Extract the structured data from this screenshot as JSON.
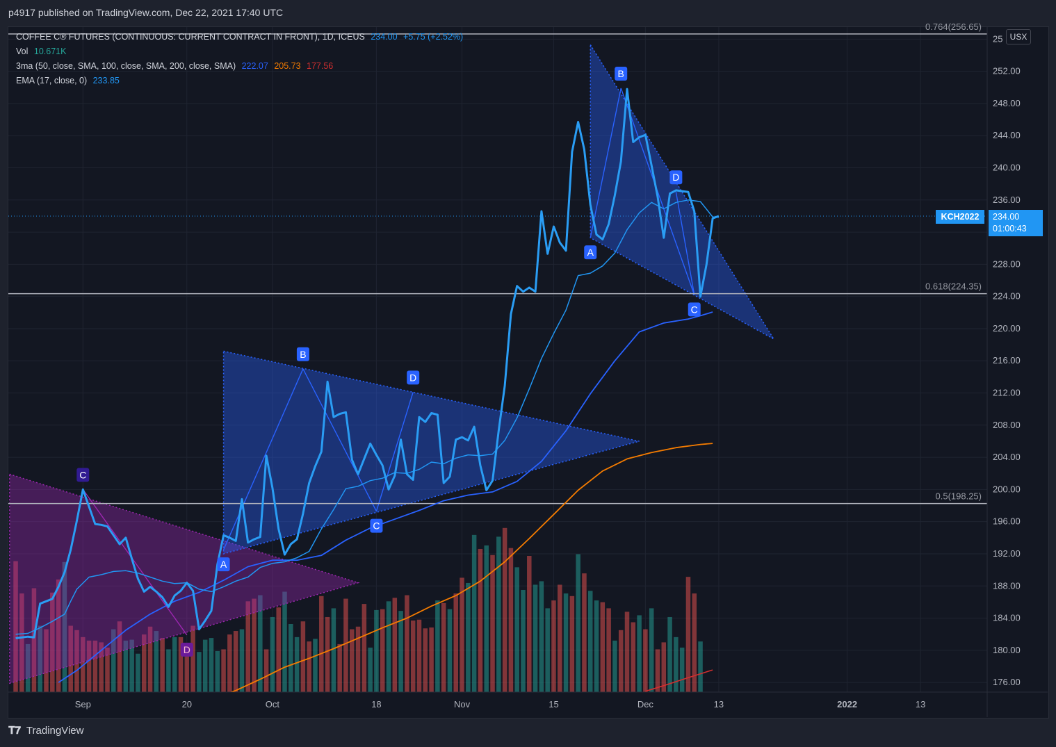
{
  "header": {
    "published": "p4917 published on TradingView.com, Dec 22, 2021 17:40 UTC"
  },
  "legend": {
    "symbol": "COFFEE C® FUTURES (CONTINUOUS: CURRENT CONTRACT IN FRONT), 1D, ICEUS",
    "last": "234.00",
    "change": "+5.75 (+2.52%)",
    "vol_label": "Vol",
    "vol_value": "10.671K",
    "ma_label": "3ma (50, close, SMA, 100, close, SMA, 200, close, SMA)",
    "ma50": "222.07",
    "ma100": "205.73",
    "ma200": "177.56",
    "ema_label": "EMA (17, close, 0)",
    "ema_value": "233.85"
  },
  "currency": "USX",
  "price_tag": {
    "symbol": "KCH2022",
    "price": "234.00",
    "countdown": "01:00:43"
  },
  "footer": {
    "brand": "TradingView"
  },
  "colors": {
    "price": "#2a9df4",
    "ema": "#2196f3",
    "ma50": "#2962ff",
    "ma100": "#f57c00",
    "ma200": "#d32f2f",
    "vol_up": "#26a69a",
    "vol_down": "#ef5350",
    "pattern_blue": "#2962ff",
    "pattern_purple": "#9c27b0"
  },
  "chart_data": {
    "type": "line",
    "y_ticks": [
      "25",
      "252.00",
      "248.00",
      "244.00",
      "240.00",
      "236.00",
      "232.00",
      "228.00",
      "224.00",
      "220.00",
      "216.00",
      "212.00",
      "208.00",
      "204.00",
      "200.00",
      "196.00",
      "192.00",
      "188.00",
      "184.00",
      "180.00",
      "176.00"
    ],
    "x_ticks": [
      {
        "d": 11,
        "label": "Sep"
      },
      {
        "d": 28,
        "label": "20"
      },
      {
        "d": 42,
        "label": "Oct"
      },
      {
        "d": 59,
        "label": "18"
      },
      {
        "d": 73,
        "label": "Nov"
      },
      {
        "d": 88,
        "label": "15"
      },
      {
        "d": 103,
        "label": "Dec"
      },
      {
        "d": 115,
        "label": "13"
      },
      {
        "d": 136,
        "label": "2022"
      },
      {
        "d": 148,
        "label": "13"
      }
    ],
    "ylim": [
      174.8,
      257.5
    ],
    "xlim": [
      -1.2,
      158.9
    ],
    "fib_levels": [
      {
        "label": "0.764(256.65)",
        "value": 256.65
      },
      {
        "label": "0.618(224.35)",
        "value": 224.35
      },
      {
        "label": "0.5(198.25)",
        "value": 198.25
      }
    ],
    "price": [
      [
        0,
        181.5
      ],
      [
        2,
        181.7
      ],
      [
        3,
        181.6
      ],
      [
        4,
        185.8
      ],
      [
        6,
        186.4
      ],
      [
        7,
        187.9
      ],
      [
        8,
        189.7
      ],
      [
        9,
        192.5
      ],
      [
        10,
        196.1
      ],
      [
        11,
        200.0
      ],
      [
        13,
        195.7
      ],
      [
        14,
        195.6
      ],
      [
        15,
        195.4
      ],
      [
        16,
        194.3
      ],
      [
        17,
        193.2
      ],
      [
        18,
        194.0
      ],
      [
        19,
        191.4
      ],
      [
        20,
        188.9
      ],
      [
        21,
        187.3
      ],
      [
        22,
        187.9
      ],
      [
        23,
        187.3
      ],
      [
        24,
        186.6
      ],
      [
        25,
        185.4
      ],
      [
        26,
        186.8
      ],
      [
        27,
        187.4
      ],
      [
        28,
        188.4
      ],
      [
        29,
        187.4
      ],
      [
        30,
        182.6
      ],
      [
        31,
        183.7
      ],
      [
        32,
        184.9
      ],
      [
        33,
        190.7
      ],
      [
        34,
        194.3
      ],
      [
        35,
        194.0
      ],
      [
        36,
        193.6
      ],
      [
        37,
        198.8
      ],
      [
        38,
        193.4
      ],
      [
        39,
        193.8
      ],
      [
        40,
        194.1
      ],
      [
        41,
        204.2
      ],
      [
        42,
        200.2
      ],
      [
        43,
        195.1
      ],
      [
        44,
        191.9
      ],
      [
        45,
        193.2
      ],
      [
        46,
        193.8
      ],
      [
        47,
        197.0
      ],
      [
        48,
        200.8
      ],
      [
        49,
        202.9
      ],
      [
        50,
        204.7
      ],
      [
        51,
        213.4
      ],
      [
        52,
        209.0
      ],
      [
        53,
        209.4
      ],
      [
        54,
        209.6
      ],
      [
        55,
        203.7
      ],
      [
        56,
        201.9
      ],
      [
        57,
        203.8
      ],
      [
        58,
        205.7
      ],
      [
        59,
        204.3
      ],
      [
        60,
        203.0
      ],
      [
        61,
        200.0
      ],
      [
        62,
        201.7
      ],
      [
        63,
        206.2
      ],
      [
        64,
        201.9
      ],
      [
        65,
        201.2
      ],
      [
        66,
        209.0
      ],
      [
        67,
        208.4
      ],
      [
        68,
        209.5
      ],
      [
        69,
        209.3
      ],
      [
        70,
        200.8
      ],
      [
        71,
        201.6
      ],
      [
        72,
        206.2
      ],
      [
        73,
        206.5
      ],
      [
        74,
        206.1
      ],
      [
        75,
        207.8
      ],
      [
        76,
        203.0
      ],
      [
        77,
        199.9
      ],
      [
        78,
        201.1
      ],
      [
        79,
        207.3
      ],
      [
        80,
        212.9
      ],
      [
        81,
        221.8
      ],
      [
        82,
        225.3
      ],
      [
        83,
        224.6
      ],
      [
        84,
        225.1
      ],
      [
        85,
        224.6
      ],
      [
        86,
        234.6
      ],
      [
        87,
        229.3
      ],
      [
        88,
        232.7
      ],
      [
        89,
        230.7
      ],
      [
        90,
        229.7
      ],
      [
        91,
        242.0
      ],
      [
        92,
        245.7
      ],
      [
        93,
        242.3
      ],
      [
        94,
        235.4
      ],
      [
        95,
        231.7
      ],
      [
        96,
        231.1
      ],
      [
        97,
        233.0
      ],
      [
        98,
        236.6
      ],
      [
        99,
        240.8
      ],
      [
        100,
        249.8
      ],
      [
        101,
        243.2
      ],
      [
        102,
        243.8
      ],
      [
        103,
        244.1
      ],
      [
        104,
        240.3
      ],
      [
        105,
        236.4
      ],
      [
        106,
        231.3
      ],
      [
        107,
        236.8
      ],
      [
        108,
        237.2
      ],
      [
        109,
        237.1
      ],
      [
        110,
        237.0
      ],
      [
        111,
        234.6
      ],
      [
        112,
        224.0
      ],
      [
        113,
        228.0
      ],
      [
        114,
        233.7
      ],
      [
        115,
        234.0
      ]
    ],
    "ema": [
      [
        0,
        182.0
      ],
      [
        2,
        182.1
      ],
      [
        4,
        182.8
      ],
      [
        6,
        183.6
      ],
      [
        8,
        184.5
      ],
      [
        9,
        186.1
      ],
      [
        10,
        187.6
      ],
      [
        12,
        189.1
      ],
      [
        14,
        189.4
      ],
      [
        16,
        189.8
      ],
      [
        18,
        189.9
      ],
      [
        20,
        189.6
      ],
      [
        22,
        189.1
      ],
      [
        24,
        188.6
      ],
      [
        26,
        188.3
      ],
      [
        28,
        188.4
      ],
      [
        30,
        187.6
      ],
      [
        32,
        187.3
      ],
      [
        34,
        187.9
      ],
      [
        36,
        188.6
      ],
      [
        38,
        189.1
      ],
      [
        40,
        190.3
      ],
      [
        42,
        190.8
      ],
      [
        44,
        191.0
      ],
      [
        46,
        191.5
      ],
      [
        48,
        192.3
      ],
      [
        50,
        195.1
      ],
      [
        52,
        197.5
      ],
      [
        54,
        200.1
      ],
      [
        56,
        200.4
      ],
      [
        58,
        201.1
      ],
      [
        60,
        201.4
      ],
      [
        62,
        202.1
      ],
      [
        64,
        202.0
      ],
      [
        66,
        202.5
      ],
      [
        68,
        203.4
      ],
      [
        70,
        203.2
      ],
      [
        72,
        203.9
      ],
      [
        74,
        204.3
      ],
      [
        76,
        204.2
      ],
      [
        78,
        204.4
      ],
      [
        80,
        206.1
      ],
      [
        82,
        208.9
      ],
      [
        84,
        212.5
      ],
      [
        86,
        216.3
      ],
      [
        88,
        219.4
      ],
      [
        90,
        222.3
      ],
      [
        92,
        226.6
      ],
      [
        94,
        226.9
      ],
      [
        96,
        227.8
      ],
      [
        98,
        229.4
      ],
      [
        100,
        232.3
      ],
      [
        102,
        234.4
      ],
      [
        104,
        235.7
      ],
      [
        106,
        234.9
      ],
      [
        108,
        235.7
      ],
      [
        110,
        236.0
      ],
      [
        112,
        235.8
      ],
      [
        114,
        233.9
      ],
      [
        115,
        233.85
      ]
    ],
    "ma50": [
      [
        7,
        176.0
      ],
      [
        10,
        177.5
      ],
      [
        14,
        180.0
      ],
      [
        18,
        182.5
      ],
      [
        22,
        184.5
      ],
      [
        26,
        186.1
      ],
      [
        30,
        187.2
      ],
      [
        34,
        188.7
      ],
      [
        38,
        190.4
      ],
      [
        42,
        191.2
      ],
      [
        46,
        191.2
      ],
      [
        50,
        191.8
      ],
      [
        54,
        193.7
      ],
      [
        58,
        195.2
      ],
      [
        62,
        196.3
      ],
      [
        66,
        197.4
      ],
      [
        70,
        198.6
      ],
      [
        74,
        199.3
      ],
      [
        78,
        199.7
      ],
      [
        82,
        201.0
      ],
      [
        86,
        203.5
      ],
      [
        90,
        207.3
      ],
      [
        94,
        211.9
      ],
      [
        98,
        216.0
      ],
      [
        102,
        219.6
      ],
      [
        106,
        220.7
      ],
      [
        110,
        221.2
      ],
      [
        112,
        221.6
      ],
      [
        114,
        222.07
      ]
    ],
    "ma100": [
      [
        32,
        173.9
      ],
      [
        36,
        175.0
      ],
      [
        40,
        176.4
      ],
      [
        44,
        177.9
      ],
      [
        48,
        179.0
      ],
      [
        52,
        180.2
      ],
      [
        56,
        181.5
      ],
      [
        60,
        182.8
      ],
      [
        64,
        184.0
      ],
      [
        68,
        185.5
      ],
      [
        72,
        186.8
      ],
      [
        76,
        188.6
      ],
      [
        80,
        191.0
      ],
      [
        84,
        193.9
      ],
      [
        88,
        196.9
      ],
      [
        92,
        199.9
      ],
      [
        96,
        202.3
      ],
      [
        100,
        203.8
      ],
      [
        104,
        204.6
      ],
      [
        108,
        205.2
      ],
      [
        112,
        205.6
      ],
      [
        114,
        205.73
      ]
    ],
    "ma200": [
      [
        103,
        174.9
      ],
      [
        106,
        175.6
      ],
      [
        110,
        176.6
      ],
      [
        114,
        177.56
      ]
    ],
    "volume_k": [
      [
        0,
        15.0
      ],
      [
        1,
        11.3
      ],
      [
        2,
        5.5
      ],
      [
        3,
        11.9
      ],
      [
        4,
        7.6
      ],
      [
        5,
        7.2
      ],
      [
        6,
        11.4
      ],
      [
        7,
        12.9
      ],
      [
        8,
        14.9
      ],
      [
        9,
        7.6
      ],
      [
        10,
        7.1
      ],
      [
        11,
        6.3
      ],
      [
        12,
        5.9
      ],
      [
        13,
        5.9
      ],
      [
        14,
        5.7
      ],
      [
        15,
        5.1
      ],
      [
        16,
        7.2
      ],
      [
        17,
        8.1
      ],
      [
        18,
        5.9
      ],
      [
        19,
        6.0
      ],
      [
        20,
        4.4
      ],
      [
        21,
        6.6
      ],
      [
        22,
        7.5
      ],
      [
        23,
        7.0
      ],
      [
        24,
        6.2
      ],
      [
        25,
        4.9
      ],
      [
        26,
        6.3
      ],
      [
        27,
        6.3
      ],
      [
        28,
        4.7
      ],
      [
        29,
        7.6
      ],
      [
        30,
        4.6
      ],
      [
        31,
        6.0
      ],
      [
        32,
        6.2
      ],
      [
        33,
        4.7
      ],
      [
        34,
        4.9
      ],
      [
        35,
        6.6
      ],
      [
        36,
        7.0
      ],
      [
        37,
        7.2
      ],
      [
        38,
        10.4
      ],
      [
        39,
        10.7
      ],
      [
        40,
        11.1
      ],
      [
        41,
        4.9
      ],
      [
        42,
        8.6
      ],
      [
        43,
        9.7
      ],
      [
        44,
        11.5
      ],
      [
        45,
        7.8
      ],
      [
        46,
        6.3
      ],
      [
        47,
        8.1
      ],
      [
        48,
        5.8
      ],
      [
        49,
        6.1
      ],
      [
        50,
        11.0
      ],
      [
        51,
        8.6
      ],
      [
        52,
        9.6
      ],
      [
        53,
        5.5
      ],
      [
        54,
        10.7
      ],
      [
        55,
        7.2
      ],
      [
        56,
        7.5
      ],
      [
        57,
        10.1
      ],
      [
        58,
        5.1
      ],
      [
        59,
        9.4
      ],
      [
        60,
        9.5
      ],
      [
        61,
        10.4
      ],
      [
        62,
        10.8
      ],
      [
        63,
        9.3
      ],
      [
        64,
        11.1
      ],
      [
        65,
        8.2
      ],
      [
        66,
        8.3
      ],
      [
        67,
        7.3
      ],
      [
        68,
        7.4
      ],
      [
        69,
        10.5
      ],
      [
        70,
        10.2
      ],
      [
        71,
        9.5
      ],
      [
        72,
        11.3
      ],
      [
        73,
        13.1
      ],
      [
        74,
        12.5
      ],
      [
        75,
        18.0
      ],
      [
        76,
        16.4
      ],
      [
        77,
        16.8
      ],
      [
        78,
        15.7
      ],
      [
        79,
        17.8
      ],
      [
        80,
        18.8
      ],
      [
        81,
        16.5
      ],
      [
        82,
        14.3
      ],
      [
        83,
        11.7
      ],
      [
        84,
        15.6
      ],
      [
        85,
        12.3
      ],
      [
        86,
        12.7
      ],
      [
        87,
        9.6
      ],
      [
        88,
        10.5
      ],
      [
        89,
        12.3
      ],
      [
        90,
        11.3
      ],
      [
        91,
        11.0
      ],
      [
        92,
        15.8
      ],
      [
        93,
        13.6
      ],
      [
        94,
        11.6
      ],
      [
        95,
        10.5
      ],
      [
        96,
        10.3
      ],
      [
        97,
        9.6
      ],
      [
        98,
        5.9
      ],
      [
        99,
        7.1
      ],
      [
        100,
        9.2
      ],
      [
        101,
        8.0
      ],
      [
        102,
        8.8
      ],
      [
        103,
        7.2
      ],
      [
        104,
        9.6
      ],
      [
        105,
        4.9
      ],
      [
        106,
        5.7
      ],
      [
        107,
        8.6
      ],
      [
        108,
        6.3
      ],
      [
        109,
        5.1
      ],
      [
        110,
        13.2
      ],
      [
        111,
        11.3
      ],
      [
        112,
        5.8
      ]
    ],
    "volume_down": [
      0,
      1,
      3,
      5,
      6,
      7,
      9,
      10,
      11,
      12,
      13,
      14,
      15,
      17,
      21,
      22,
      24,
      27,
      28,
      29,
      34,
      35,
      36,
      38,
      39,
      41,
      43,
      47,
      48,
      50,
      51,
      53,
      54,
      55,
      56,
      57,
      60,
      62,
      64,
      65,
      66,
      67,
      68,
      70,
      72,
      73,
      76,
      78,
      80,
      81,
      84,
      88,
      89,
      91,
      93,
      96,
      97,
      99,
      100,
      101,
      103,
      105,
      106,
      110,
      111
    ],
    "patterns": [
      {
        "color": "purple",
        "points": [
          {
            "d": 11,
            "p": 200.0,
            "label": "C"
          },
          {
            "d": 28,
            "p": 181.9,
            "label": "D"
          }
        ],
        "triangle": [
          [
            -1,
            201.9
          ],
          [
            56,
            188.4
          ],
          [
            -1,
            175.9
          ]
        ]
      },
      {
        "color": "blue",
        "points": [
          {
            "d": 34,
            "p": 192.5,
            "label": "A"
          },
          {
            "d": 47,
            "p": 215.0,
            "label": "B"
          },
          {
            "d": 59,
            "p": 197.3,
            "label": "C"
          },
          {
            "d": 65,
            "p": 212.1,
            "label": "D"
          }
        ],
        "triangle": [
          [
            34,
            217.2
          ],
          [
            102,
            206.0
          ],
          [
            34,
            192.0
          ]
        ]
      },
      {
        "color": "blue",
        "points": [
          {
            "d": 94,
            "p": 231.3,
            "label": "A"
          },
          {
            "d": 99,
            "p": 249.9,
            "label": "B"
          },
          {
            "d": 111,
            "p": 224.2,
            "label": "C"
          },
          {
            "d": 108,
            "p": 237.0,
            "label": "D"
          }
        ],
        "triangle": [
          [
            94,
            255.3
          ],
          [
            124,
            218.7
          ],
          [
            94,
            231.3
          ]
        ]
      }
    ]
  }
}
